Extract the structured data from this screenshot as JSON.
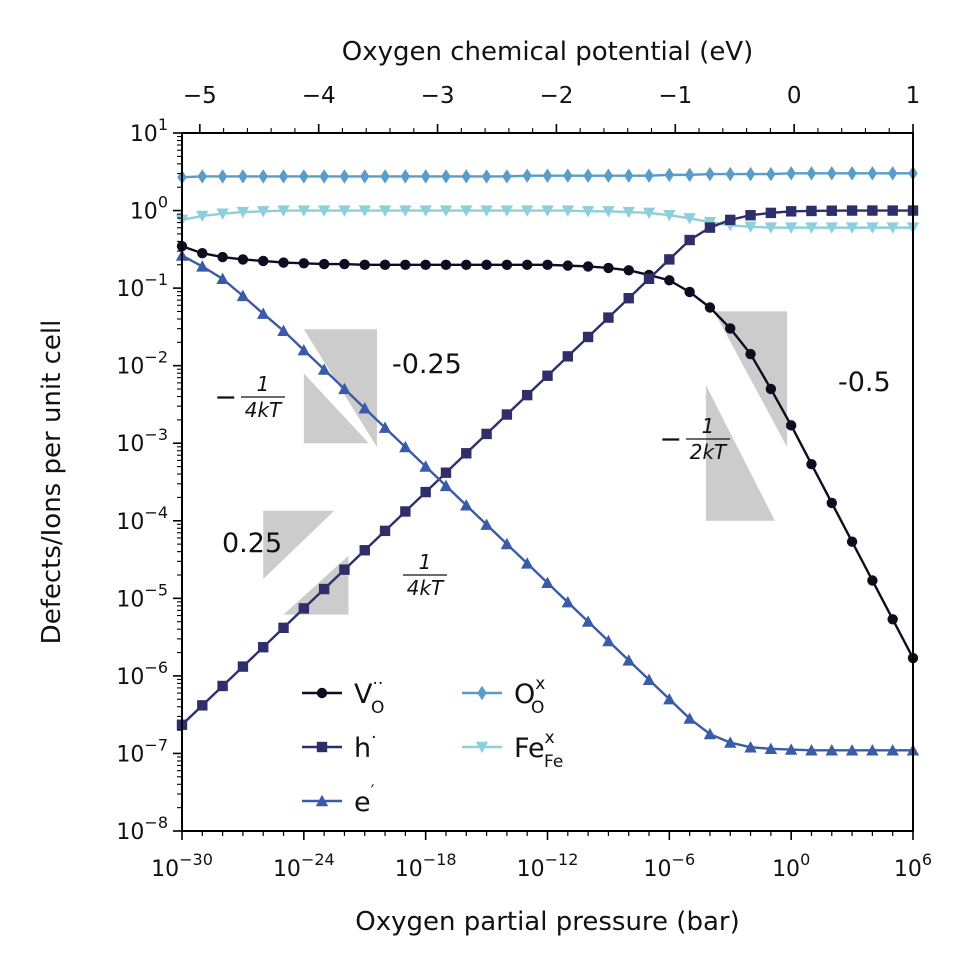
{
  "chart_data": {
    "type": "line",
    "xlabel": "Oxygen partial pressure (bar)",
    "ylabel": "Defects/Ions per unit cell",
    "top_xlabel": "Oxygen chemical potential (eV)",
    "x_scale": "log",
    "y_scale": "log",
    "xlim": [
      1e-30,
      1000000.0
    ],
    "ylim": [
      1e-08,
      10
    ],
    "top_xlim": [
      -5.15,
      1.0
    ],
    "x_ticks": [
      {
        "base": "10",
        "exp": "−30"
      },
      {
        "base": "10",
        "exp": "−24"
      },
      {
        "base": "10",
        "exp": "−18"
      },
      {
        "base": "10",
        "exp": "−12"
      },
      {
        "base": "10",
        "exp": "−6"
      },
      {
        "base": "10",
        "exp": "0"
      },
      {
        "base": "10",
        "exp": "6"
      }
    ],
    "y_ticks": [
      {
        "base": "10",
        "exp": "1"
      },
      {
        "base": "10",
        "exp": "0"
      },
      {
        "base": "10",
        "exp": "−1"
      },
      {
        "base": "10",
        "exp": "−2"
      },
      {
        "base": "10",
        "exp": "−3"
      },
      {
        "base": "10",
        "exp": "−4"
      },
      {
        "base": "10",
        "exp": "−5"
      },
      {
        "base": "10",
        "exp": "−6"
      },
      {
        "base": "10",
        "exp": "−7"
      },
      {
        "base": "10",
        "exp": "−8"
      }
    ],
    "top_ticks": [
      "−5",
      "−4",
      "−3",
      "−2",
      "−1",
      "0",
      "1"
    ],
    "series": [
      {
        "name": "V_O^··",
        "color": "#0d0d1f",
        "marker": "circle",
        "log10_x": [
          -30,
          -29,
          -28,
          -27,
          -26,
          -25,
          -24,
          -23,
          -22,
          -21,
          -20,
          -19,
          -18,
          -17,
          -16,
          -15,
          -14,
          -13,
          -12,
          -11,
          -10,
          -9,
          -8,
          -7,
          -6,
          -5,
          -4,
          -3,
          -2,
          -1,
          0,
          1,
          2,
          3,
          4,
          5,
          6
        ],
        "log10_y": [
          -0.46,
          -0.55,
          -0.6,
          -0.63,
          -0.65,
          -0.67,
          -0.68,
          -0.69,
          -0.69,
          -0.7,
          -0.7,
          -0.7,
          -0.7,
          -0.7,
          -0.7,
          -0.7,
          -0.7,
          -0.7,
          -0.7,
          -0.71,
          -0.72,
          -0.74,
          -0.77,
          -0.83,
          -0.9,
          -1.05,
          -1.25,
          -1.52,
          -1.85,
          -2.3,
          -2.77,
          -3.27,
          -3.77,
          -4.27,
          -4.77,
          -5.27,
          -5.77
        ]
      },
      {
        "name": "h^·",
        "color": "#2e2e6a",
        "marker": "square",
        "log10_x": [
          -30,
          -29,
          -28,
          -27,
          -26,
          -25,
          -24,
          -23,
          -22,
          -21,
          -20,
          -19,
          -18,
          -17,
          -16,
          -15,
          -14,
          -13,
          -12,
          -11,
          -10,
          -9,
          -8,
          -7,
          -6,
          -5,
          -4,
          -3,
          -2,
          -1,
          0,
          1,
          2,
          3,
          4,
          5,
          6
        ],
        "log10_y": [
          -6.63,
          -6.38,
          -6.13,
          -5.88,
          -5.63,
          -5.38,
          -5.13,
          -4.88,
          -4.63,
          -4.38,
          -4.13,
          -3.88,
          -3.63,
          -3.38,
          -3.13,
          -2.88,
          -2.63,
          -2.38,
          -2.13,
          -1.88,
          -1.63,
          -1.38,
          -1.13,
          -0.88,
          -0.63,
          -0.38,
          -0.22,
          -0.12,
          -0.06,
          -0.03,
          -0.01,
          -0.005,
          -0.002,
          0.0,
          0.0,
          0.0,
          0.0
        ]
      },
      {
        "name": "e^′",
        "color": "#3a5ba8",
        "marker": "triangle-up",
        "log10_x": [
          -30,
          -29,
          -28,
          -27,
          -26,
          -25,
          -24,
          -23,
          -22,
          -21,
          -20,
          -19,
          -18,
          -17,
          -16,
          -15,
          -14,
          -13,
          -12,
          -11,
          -10,
          -9,
          -8,
          -7,
          -6,
          -5,
          -4,
          -3,
          -2,
          -1,
          0,
          1,
          2,
          3,
          4,
          5,
          6
        ],
        "log10_y": [
          -0.58,
          -0.72,
          -0.88,
          -1.1,
          -1.33,
          -1.55,
          -1.8,
          -2.05,
          -2.3,
          -2.55,
          -2.8,
          -3.05,
          -3.3,
          -3.55,
          -3.8,
          -4.05,
          -4.3,
          -4.55,
          -4.8,
          -5.05,
          -5.3,
          -5.55,
          -5.8,
          -6.05,
          -6.3,
          -6.55,
          -6.75,
          -6.86,
          -6.92,
          -6.94,
          -6.95,
          -6.96,
          -6.96,
          -6.96,
          -6.96,
          -6.96,
          -6.96
        ]
      },
      {
        "name": "O_O^x",
        "color": "#5a9cc8",
        "marker": "diamond",
        "log10_x": [
          -30,
          -29,
          -28,
          -27,
          -26,
          -25,
          -24,
          -23,
          -22,
          -21,
          -20,
          -19,
          -18,
          -17,
          -16,
          -15,
          -14,
          -13,
          -12,
          -11,
          -10,
          -9,
          -8,
          -7,
          -6,
          -5,
          -4,
          -3,
          -2,
          -1,
          0,
          1,
          2,
          3,
          4,
          5,
          6
        ],
        "log10_y": [
          0.43,
          0.44,
          0.44,
          0.44,
          0.44,
          0.44,
          0.44,
          0.44,
          0.44,
          0.44,
          0.44,
          0.44,
          0.44,
          0.44,
          0.44,
          0.44,
          0.44,
          0.45,
          0.45,
          0.45,
          0.45,
          0.45,
          0.45,
          0.45,
          0.46,
          0.46,
          0.47,
          0.47,
          0.47,
          0.47,
          0.48,
          0.48,
          0.48,
          0.48,
          0.48,
          0.48,
          0.48
        ]
      },
      {
        "name": "Fe_Fe^x",
        "color": "#8ecfdc",
        "marker": "triangle-down",
        "log10_x": [
          -30,
          -29,
          -28,
          -27,
          -26,
          -25,
          -24,
          -23,
          -22,
          -21,
          -20,
          -19,
          -18,
          -17,
          -16,
          -15,
          -14,
          -13,
          -12,
          -11,
          -10,
          -9,
          -8,
          -7,
          -6,
          -5,
          -4,
          -3,
          -2,
          -1,
          0,
          1,
          2,
          3,
          4,
          5,
          6
        ],
        "log10_y": [
          -0.12,
          -0.07,
          -0.04,
          -0.02,
          -0.01,
          0.0,
          0.0,
          0.0,
          0.0,
          0.0,
          0.0,
          0.0,
          0.0,
          0.0,
          0.0,
          0.0,
          0.0,
          0.0,
          0.0,
          0.0,
          -0.01,
          -0.01,
          -0.02,
          -0.03,
          -0.06,
          -0.1,
          -0.15,
          -0.19,
          -0.21,
          -0.22,
          -0.22,
          -0.22,
          -0.22,
          -0.22,
          -0.22,
          -0.22,
          -0.22
        ]
      }
    ],
    "legend": {
      "placement": "lower-center",
      "entries": [
        {
          "main": "V",
          "sub": "O",
          "sup": "··",
          "series": 0
        },
        {
          "main": "h",
          "sub": "",
          "sup": "·",
          "series": 1
        },
        {
          "main": "e",
          "sub": "",
          "sup": "′",
          "series": 2
        },
        {
          "main": "O",
          "sub": "O",
          "sup": "x",
          "series": 3
        },
        {
          "main": "Fe",
          "sub": "Fe",
          "sup": "x",
          "series": 4
        }
      ]
    },
    "slope_labels": {
      "minus_025": "-0.25",
      "minus_05": "-0.5",
      "plus_025": "0.25",
      "frac_4kT": {
        "sign": "−",
        "num": "1",
        "den": "4kT"
      },
      "frac_2kT": {
        "sign": "−",
        "num": "1",
        "den": "2kT"
      },
      "frac_4kT_pos": {
        "sign": "",
        "num": "1",
        "den": "4kT"
      }
    },
    "slope_triangles": [
      {
        "name": "triangle-e-upper",
        "pts": [
          [
            -24,
            -1.53
          ],
          [
            -20.4,
            -1.53
          ],
          [
            -20.4,
            -3.05
          ]
        ]
      },
      {
        "name": "triangle-e-lower",
        "pts": [
          [
            -24,
            -2.1
          ],
          [
            -24,
            -3.0
          ],
          [
            -20.8,
            -3.0
          ]
        ]
      },
      {
        "name": "triangle-h-upper",
        "pts": [
          [
            -26,
            -3.87
          ],
          [
            -22.5,
            -3.87
          ],
          [
            -26,
            -4.75
          ]
        ]
      },
      {
        "name": "triangle-h-lower",
        "pts": [
          [
            -21.8,
            -4.45
          ],
          [
            -21.8,
            -5.21
          ],
          [
            -25,
            -5.21
          ]
        ]
      },
      {
        "name": "triangle-vo-upper",
        "pts": [
          [
            -3.8,
            -1.3
          ],
          [
            -0.2,
            -1.3
          ],
          [
            -0.2,
            -3.05
          ]
        ]
      },
      {
        "name": "triangle-vo-lower",
        "pts": [
          [
            -4.2,
            -2.25
          ],
          [
            -4.2,
            -4.0
          ],
          [
            -0.8,
            -4.0
          ]
        ]
      }
    ],
    "grid": false
  }
}
